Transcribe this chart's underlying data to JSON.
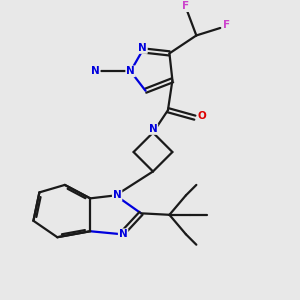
{
  "bg_color": "#e8e8e8",
  "bond_color": "#1a1a1a",
  "N_color": "#0000dd",
  "O_color": "#dd0000",
  "F_color": "#cc44cc",
  "lw": 1.6,
  "figsize": [
    3.0,
    3.0
  ],
  "dpi": 100,
  "xlim": [
    0,
    10
  ],
  "ylim": [
    0,
    10
  ]
}
